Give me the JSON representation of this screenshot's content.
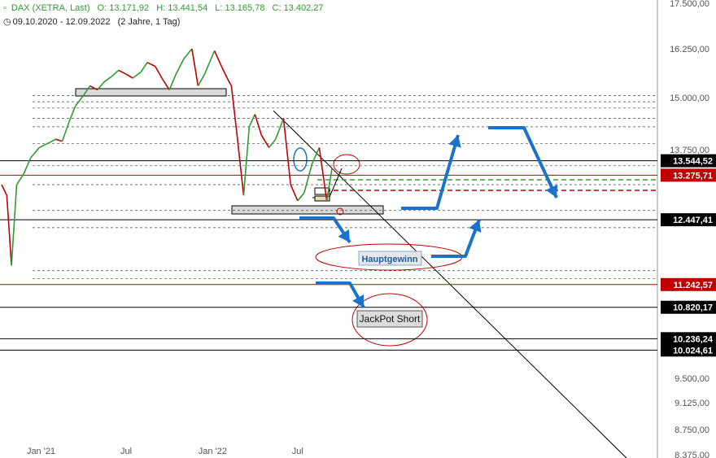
{
  "header": {
    "symbol_icon": "chart-bars-icon",
    "title": "DAX (XETRA, Last)",
    "ohlc": {
      "open": "O: 13.171,92",
      "high": "H: 13.441,54",
      "low": "L: 13.165,78",
      "close": "C: 13.402,27"
    },
    "clock_icon": "clock-icon",
    "range": "09.10.2020 - 12.09.2022",
    "period": "(2 Jahre, 1 Tag)"
  },
  "chart_data": {
    "type": "line",
    "title": "DAX (XETRA, Last)",
    "x_tick_labels": [
      "Jan '21",
      "Jul",
      "Jan '22",
      "Jul"
    ],
    "x_tick_dates": [
      "2021-01-01",
      "2021-07-01",
      "2022-01-01",
      "2022-07-01"
    ],
    "x_range": [
      "2020-10-09",
      "2022-09-12"
    ],
    "y_tick_labels": [
      "17.500,00",
      "16.250,00",
      "15.000,00",
      "13.750,00",
      "9.500,00",
      "9.125,00",
      "8.750,00",
      "8.375,00"
    ],
    "y_ticks": [
      17500,
      16250,
      15000,
      13750,
      9500,
      9125,
      8750,
      8375
    ],
    "y_range": [
      8375,
      17750
    ],
    "series": [
      {
        "x": [
          "2020-10-09",
          "2020-10-20",
          "2020-10-30",
          "2020-11-10",
          "2020-11-25",
          "2020-12-10",
          "2020-12-28",
          "2021-01-15",
          "2021-02-01",
          "2021-02-15",
          "2021-03-01",
          "2021-03-15",
          "2021-04-01",
          "2021-04-15",
          "2021-05-01",
          "2021-05-15",
          "2021-06-01",
          "2021-06-15",
          "2021-07-01",
          "2021-07-15",
          "2021-08-01",
          "2021-08-15",
          "2021-09-01",
          "2021-09-15",
          "2021-10-01",
          "2021-10-15",
          "2021-11-01",
          "2021-11-18",
          "2021-12-01",
          "2021-12-15",
          "2022-01-05",
          "2022-01-20",
          "2022-02-01",
          "2022-02-10",
          "2022-02-24",
          "2022-03-08",
          "2022-03-20",
          "2022-04-01",
          "2022-04-15",
          "2022-05-01",
          "2022-05-15",
          "2022-06-01",
          "2022-06-16",
          "2022-07-01",
          "2022-07-15",
          "2022-08-01",
          "2022-08-16",
          "2022-09-01",
          "2022-09-12"
        ],
        "values": [
          13100,
          12900,
          11600,
          13100,
          13300,
          13600,
          13800,
          13900,
          14000,
          13950,
          14400,
          14800,
          15050,
          15300,
          15200,
          15400,
          15550,
          15700,
          15600,
          15500,
          15650,
          15900,
          15800,
          15500,
          15200,
          15600,
          16000,
          16250,
          15300,
          15600,
          16200,
          15800,
          15500,
          15300,
          13900,
          12900,
          14300,
          14600,
          14100,
          13800,
          14000,
          14500,
          13100,
          12800,
          12950,
          13500,
          13800,
          12800,
          13400
        ]
      }
    ],
    "horizontal_levels": [
      {
        "value": 13544.52,
        "label": "13.544,52",
        "badge_color": "#000000",
        "line_color": "#000000"
      },
      {
        "value": 13275.71,
        "label": "13.275,71",
        "badge_color": "#c00000",
        "line_color": "#c00000"
      },
      {
        "value": 12447.41,
        "label": "12.447,41",
        "badge_color": "#000000",
        "line_color": "#000000"
      },
      {
        "value": 11242.57,
        "label": "11.242,57",
        "badge_color": "#c00000",
        "line_color": "#c00000"
      },
      {
        "value": 10820.17,
        "label": "10.820,17",
        "badge_color": "#000000",
        "line_color": "#000000"
      },
      {
        "value": 10236.24,
        "label": "10.236,24",
        "badge_color": "#000000",
        "line_color": "#000000"
      },
      {
        "value": 10024.61,
        "label": "10.024,61",
        "badge_color": "#000000",
        "line_color": "#000000"
      }
    ],
    "annotations": {
      "main_target": "Hauptgewinn",
      "jackpot": "JackPot Short"
    },
    "grid": false,
    "colors": {
      "up": "#2e9c2e",
      "down": "#c00000",
      "arrows": "#1a73c8",
      "resistance": "#c00000",
      "axis_text": "#555555"
    }
  }
}
